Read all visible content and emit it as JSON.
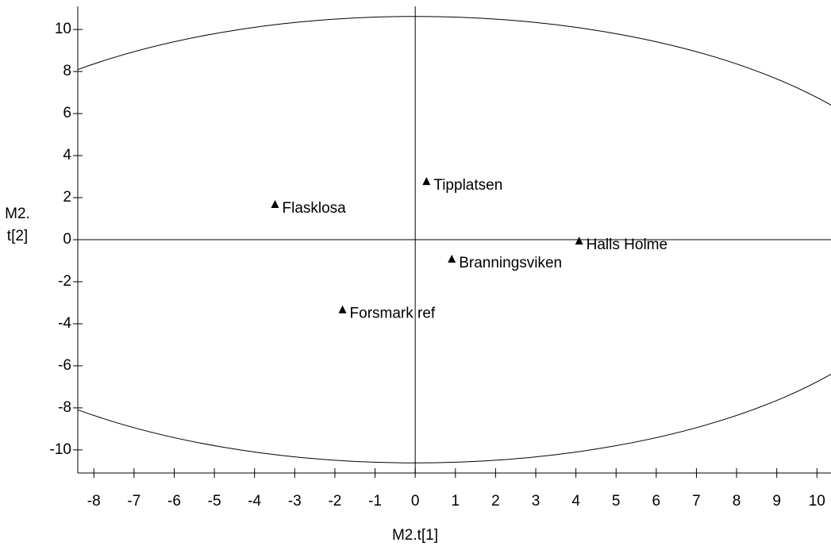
{
  "chart_data": {
    "type": "scatter",
    "xlabel": "M2.t[1]",
    "ylabel": [
      "M2.",
      "t[2]"
    ],
    "points": [
      {
        "label": "Flasklosa",
        "x": -3.49,
        "y": 1.66
      },
      {
        "label": "Tipplatsen",
        "x": 0.28,
        "y": 2.75
      },
      {
        "label": "Halls Holme",
        "x": 4.08,
        "y": -0.08
      },
      {
        "label": "Branningsviken",
        "x": 0.91,
        "y": -0.94
      },
      {
        "label": "Forsmark ref",
        "x": -1.81,
        "y": -3.35
      }
    ],
    "color": "#000000",
    "ellipse_semi_axes": [
      12.97,
      10.62
    ],
    "xlim": [
      -8.4,
      10.35
    ],
    "ylim": [
      -11.1,
      11.1
    ],
    "xticks": [
      -8,
      -7,
      -6,
      -5,
      -4,
      -3,
      -2,
      -1,
      0,
      1,
      2,
      3,
      4,
      5,
      6,
      7,
      8,
      9,
      10
    ],
    "yticks": [
      -10,
      -8,
      -6,
      -4,
      -2,
      0,
      2,
      4,
      6,
      8,
      10
    ]
  }
}
